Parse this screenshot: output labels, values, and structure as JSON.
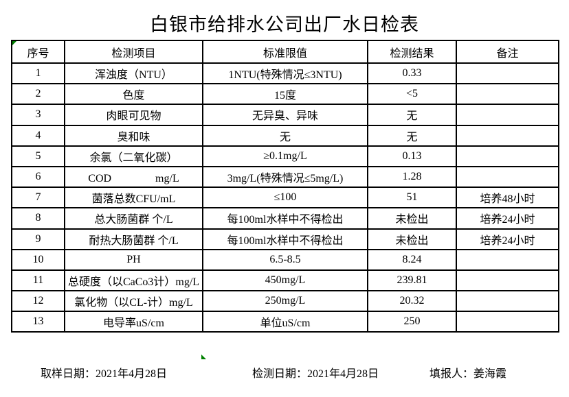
{
  "title": "白银市给排水公司出厂水日检表",
  "colors": {
    "background": "#ffffff",
    "text": "#000000",
    "grid_border": "#000000",
    "artifact_marker_green": "#008000"
  },
  "icons": {
    "top_left_marker": "green-corner-triangle",
    "bottom_marker": "green-corner-triangle"
  },
  "table": {
    "headers": [
      "序号",
      "检测项目",
      "标准限值",
      "检测结果",
      "备注"
    ],
    "rows": [
      [
        "1",
        "浑浊度（NTU）",
        "1NTU(特殊情况≤3NTU)",
        "0.33",
        ""
      ],
      [
        "2",
        "色度",
        "15度",
        "<5",
        ""
      ],
      [
        "3",
        "肉眼可见物",
        "无异臭、异味",
        "无",
        ""
      ],
      [
        "4",
        "臭和味",
        "无",
        "无",
        ""
      ],
      [
        "5",
        "余氯（二氧化碳）",
        "≥0.1mg/L",
        "0.13",
        ""
      ],
      [
        "6",
        "COD　　　　mg/L",
        "3mg/L(特殊情况≤5mg/L)",
        "1.28",
        ""
      ],
      [
        "7",
        "菌落总数CFU/mL",
        "≤100",
        "51",
        "培养48小时"
      ],
      [
        "8",
        "总大肠菌群 个/L",
        "每100ml水样中不得检出",
        "未检出",
        "培养24小时"
      ],
      [
        "9",
        "耐热大肠菌群 个/L",
        "每100ml水样中不得检出",
        "未检出",
        "培养24小时"
      ],
      [
        "10",
        "PH",
        "6.5-8.5",
        "8.24",
        ""
      ],
      [
        "11",
        "总硬度（以CaCo3计）mg/L",
        "450mg/L",
        "239.81",
        ""
      ],
      [
        "12",
        "氯化物（以CL-计）mg/L",
        "250mg/L",
        "20.32",
        ""
      ],
      [
        "13",
        "电导率uS/cm",
        "单位uS/cm",
        "250",
        ""
      ]
    ]
  },
  "footer": {
    "sampling": {
      "label": "取样日期：",
      "value": "2021年4月28日"
    },
    "testing": {
      "label": "检测日期：",
      "value": "2021年4月28日"
    },
    "reporter": {
      "label": "填报人：",
      "value": "姜海霞"
    }
  }
}
